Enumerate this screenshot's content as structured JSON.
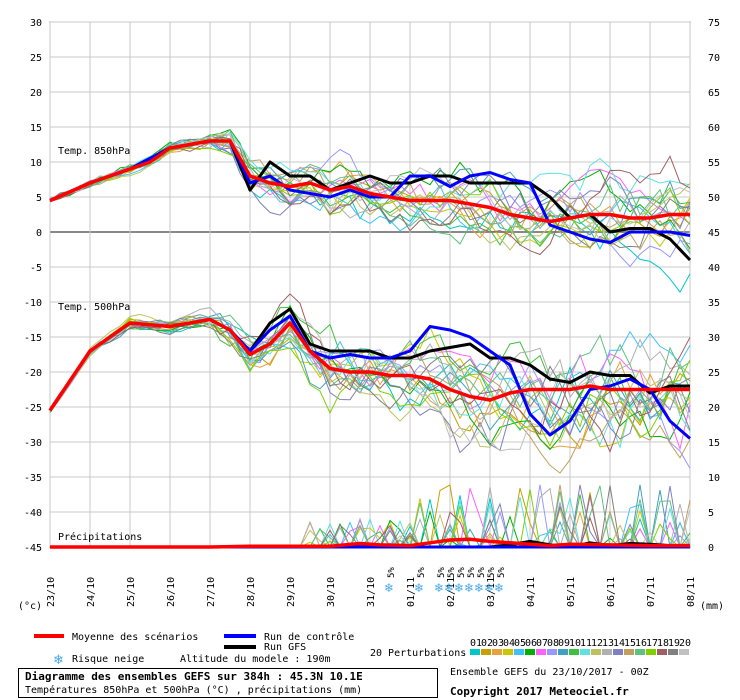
{
  "chart_data": {
    "type": "line",
    "title": "Diagramme des ensembles GEFS sur 384h : 45.3N 10.1E",
    "subtitle": "Températures 850hPa et 500hPa (°C) , précipitations (mm)",
    "left_axis": {
      "unit": "(°c)",
      "range": [
        -45,
        30
      ],
      "ticks": [
        30,
        25,
        20,
        15,
        10,
        5,
        0,
        -5,
        -10,
        -15,
        -20,
        -25,
        -30,
        -35,
        -40,
        -45
      ]
    },
    "right_axis": {
      "unit": "(mm)",
      "range": [
        0,
        75
      ],
      "ticks": [
        75,
        70,
        65,
        60,
        55,
        50,
        45,
        40,
        35,
        30,
        25,
        20,
        15,
        10,
        5,
        0
      ]
    },
    "x_axis": {
      "range": [
        0,
        384
      ],
      "tick_labels": [
        "23/10",
        "24/10",
        "25/10",
        "26/10",
        "27/10",
        "28/10",
        "29/10",
        "30/10",
        "31/10",
        "01/11",
        "02/11",
        "03/11",
        "04/11",
        "05/11",
        "06/11",
        "07/11",
        "08/11"
      ]
    },
    "panel_labels": {
      "t850": "Temp. 850hPa",
      "t500": "Temp. 500hPa",
      "precip": "Précipitations"
    },
    "snow": {
      "symbol": "❄",
      "label": "5%",
      "hours": [
        204,
        222,
        234,
        240,
        246,
        252,
        258,
        264,
        270
      ]
    },
    "series": [
      {
        "name": "Moyenne des scénarios",
        "color": "#ff0000",
        "panel": "t850",
        "x": [
          0,
          24,
          48,
          60,
          72,
          96,
          108,
          120,
          132,
          144,
          156,
          168,
          180,
          192,
          204,
          216,
          228,
          240,
          252,
          264,
          276,
          288,
          300,
          312,
          324,
          336,
          348,
          360,
          372,
          384
        ],
        "values": [
          4.5,
          7,
          9,
          10,
          12,
          13,
          13,
          8,
          7,
          6.5,
          7,
          6,
          6.5,
          5.5,
          5,
          4.5,
          4.5,
          4.5,
          4,
          3.5,
          2.5,
          2,
          1.5,
          2,
          2.5,
          2.5,
          2,
          2,
          2.5,
          2.5
        ]
      },
      {
        "name": "Run de contrôle",
        "color": "#0000ff",
        "panel": "t850",
        "x": [
          0,
          24,
          48,
          72,
          96,
          108,
          120,
          132,
          144,
          156,
          168,
          180,
          192,
          204,
          216,
          228,
          240,
          252,
          264,
          276,
          288,
          300,
          312,
          324,
          336,
          348,
          360,
          372,
          384
        ],
        "values": [
          4.5,
          7,
          9,
          12,
          13,
          13,
          7,
          8,
          6,
          5.5,
          5,
          6,
          5,
          5,
          8,
          8,
          6.5,
          8,
          8.5,
          7.5,
          7,
          1,
          0,
          -1,
          -1.5,
          0,
          0,
          0,
          -0.5
        ]
      },
      {
        "name": "Run GFS",
        "color": "#000000",
        "panel": "t850",
        "x": [
          0,
          24,
          48,
          72,
          96,
          108,
          120,
          132,
          144,
          156,
          168,
          180,
          192,
          204,
          216,
          228,
          240,
          252,
          264,
          276,
          288,
          300,
          312,
          324,
          336,
          348,
          360,
          372,
          384
        ],
        "values": [
          4.5,
          7,
          9,
          12,
          13,
          13,
          6,
          10,
          8,
          8,
          6,
          7,
          8,
          7,
          7,
          8,
          8,
          7,
          7,
          7,
          7,
          5,
          2,
          2.5,
          0,
          0.5,
          0.5,
          -1,
          -4
        ]
      },
      {
        "name": "Moyenne des scénarios",
        "color": "#ff0000",
        "panel": "t500",
        "x": [
          0,
          24,
          48,
          72,
          96,
          108,
          120,
          132,
          144,
          156,
          168,
          180,
          192,
          204,
          216,
          228,
          240,
          252,
          264,
          276,
          288,
          300,
          312,
          324,
          336,
          348,
          360,
          372,
          384
        ],
        "values": [
          -25.5,
          -17,
          -13,
          -13.5,
          -12.5,
          -14,
          -17.5,
          -16,
          -13,
          -17,
          -19.5,
          -20,
          -20,
          -20.5,
          -20.5,
          -21,
          -22.5,
          -23.5,
          -24,
          -23,
          -22.5,
          -22.5,
          -22.5,
          -22,
          -22.5,
          -22.5,
          -22.5,
          -22.5,
          -22.5
        ]
      },
      {
        "name": "Run de contrôle",
        "color": "#0000ff",
        "panel": "t500",
        "x": [
          0,
          24,
          48,
          72,
          96,
          108,
          120,
          132,
          144,
          156,
          168,
          180,
          192,
          204,
          216,
          228,
          240,
          252,
          264,
          276,
          288,
          300,
          312,
          324,
          336,
          348,
          360,
          372,
          384
        ],
        "values": [
          -25.5,
          -17,
          -13,
          -13.5,
          -12.5,
          -14,
          -17,
          -14,
          -12,
          -17,
          -18,
          -17.5,
          -18,
          -18,
          -17,
          -13.5,
          -14,
          -15,
          -17,
          -19,
          -26,
          -29,
          -27,
          -22.5,
          -22,
          -21,
          -22.5,
          -27,
          -29.5
        ]
      },
      {
        "name": "Run GFS",
        "color": "#000000",
        "panel": "t500",
        "x": [
          0,
          24,
          48,
          72,
          96,
          108,
          120,
          132,
          144,
          156,
          168,
          180,
          192,
          204,
          216,
          228,
          240,
          252,
          264,
          276,
          288,
          300,
          312,
          324,
          336,
          348,
          360,
          372,
          384
        ],
        "values": [
          -25.5,
          -17,
          -13,
          -13.5,
          -12.5,
          -14,
          -17,
          -13,
          -11,
          -16,
          -17,
          -17,
          -17,
          -18,
          -18,
          -17,
          -16.5,
          -16,
          -18,
          -18,
          -19,
          -21,
          -21.5,
          -20,
          -20.5,
          -20.5,
          -23,
          -22,
          -22
        ]
      },
      {
        "name": "Moyenne des scénarios",
        "color": "#ff0000",
        "panel": "precip",
        "x": [
          0,
          96,
          120,
          168,
          186,
          198,
          216,
          228,
          240,
          252,
          264,
          276,
          288,
          300,
          312,
          336,
          360,
          384
        ],
        "values": [
          0,
          0,
          0.1,
          0.1,
          0.5,
          0.3,
          0.2,
          0.6,
          1,
          1.1,
          0.8,
          0.6,
          0.4,
          0.2,
          0.4,
          0.3,
          0.2,
          0.2
        ]
      },
      {
        "name": "Run de contrôle",
        "color": "#0000ff",
        "panel": "precip",
        "x": [
          0,
          384
        ],
        "values": [
          0,
          0
        ]
      },
      {
        "name": "Run GFS",
        "color": "#000000",
        "panel": "precip",
        "x": [
          0,
          96,
          240,
          252,
          264,
          276,
          288,
          300,
          312,
          324,
          336,
          348,
          360,
          372,
          384
        ],
        "values": [
          0,
          0,
          0,
          0,
          0,
          0.3,
          0.8,
          0.3,
          0,
          0.6,
          0.2,
          0.5,
          0.4,
          0.2,
          0
        ]
      }
    ]
  },
  "legend": {
    "mean": "Moyenne des scénarios",
    "control": "Run de contrôle",
    "gfs": "Run GFS",
    "snow_risk": "Risque neige",
    "altitude": "Altitude du modele : 190m",
    "perturbations": "20 Perturbations",
    "pert_numbers": [
      "01",
      "02",
      "03",
      "04",
      "05",
      "06",
      "07",
      "08",
      "09",
      "10",
      "11",
      "12",
      "13",
      "14",
      "15",
      "16",
      "17",
      "18",
      "19",
      "20"
    ],
    "pert_colors": [
      "#00c8c8",
      "#c8a000",
      "#e8a040",
      "#c8c800",
      "#40c0ff",
      "#00b000",
      "#ff60ff",
      "#9898ff",
      "#40a0c0",
      "#40c040",
      "#60e0e0",
      "#c0c060",
      "#b0b0b0",
      "#8080c0",
      "#c0a060",
      "#60c080",
      "#80d000",
      "#a06060",
      "#808080",
      "#c0c0c0"
    ]
  },
  "footer": {
    "title": "Diagramme des ensembles GEFS sur 384h : 45.3N 10.1E",
    "subtitle": "Températures 850hPa et 500hPa (°C) , précipitations (mm)",
    "ensemble": "Ensemble GEFS du 23/10/2017 - 00Z",
    "copyright": "Copyright 2017 Meteociel.fr"
  }
}
